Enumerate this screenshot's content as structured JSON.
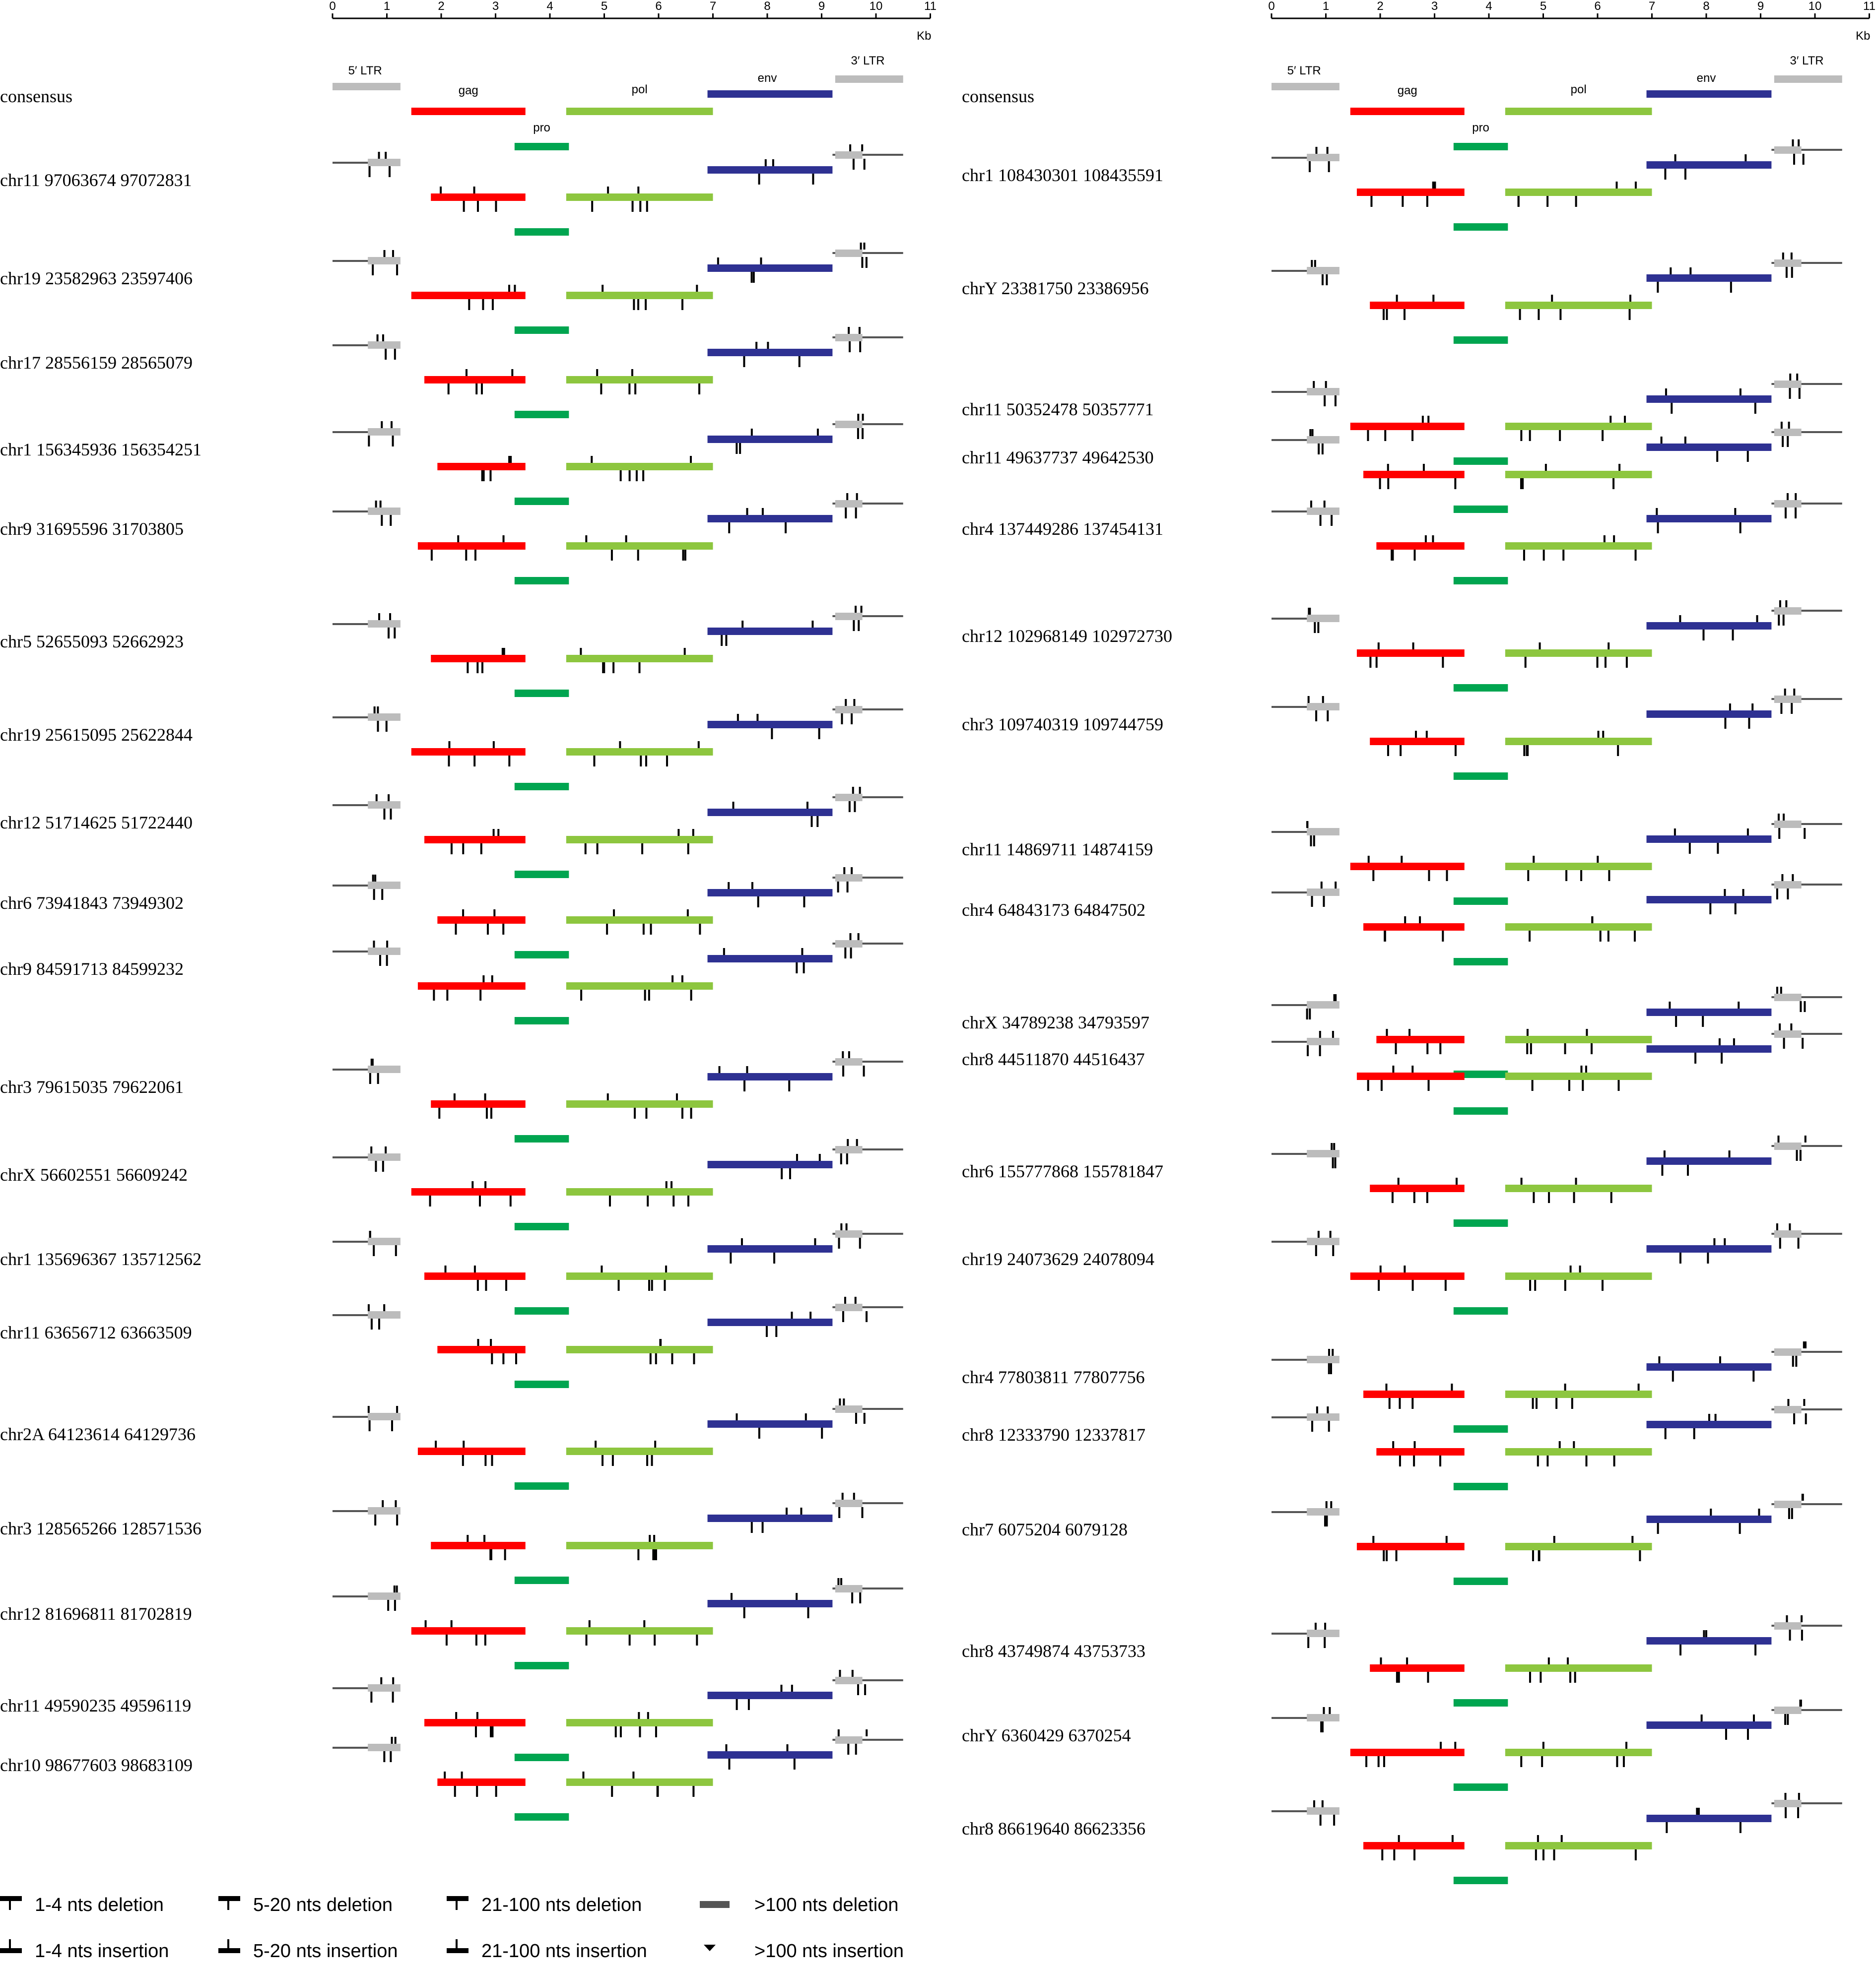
{
  "axis": {
    "ticks": [
      "0",
      "1",
      "2",
      "3",
      "4",
      "5",
      "6",
      "7",
      "8",
      "9",
      "10",
      "11"
    ],
    "unit": "Kb",
    "max_kb": 11
  },
  "consensus": {
    "label": "consensus",
    "five_ltr": "5′ LTR",
    "three_ltr": "3′ LTR",
    "gag": "gag",
    "pro": "pro",
    "pol": "pol",
    "env": "env"
  },
  "colors": {
    "gag": "#ff0000",
    "pro": "#00a550",
    "pol": "#8dc63f",
    "env": "#2e3192",
    "ltr": "#bcbcbc",
    "backbone": "#555555"
  },
  "left_labels": [
    "chr11 97063674 97072831",
    "chr19 23582963 23597406",
    "chr17 28556159 28565079",
    "chr1 156345936 156354251",
    "chr9 31695596 31703805",
    "chr5 52655093 52662923",
    "chr19 25615095 25622844",
    "chr12 51714625 51722440",
    "chr6 73941843 73949302",
    "chr9 84591713 84599232",
    "chr3 79615035 79622061",
    "chrX 56602551 56609242",
    "chr1 135696367 135712562",
    "chr11 63656712 63663509",
    "chr2A 64123614 64129736",
    "chr3 128565266 128571536",
    "chr12 81696811 81702819",
    "chr11 49590235 49596119",
    "chr10 98677603 98683109"
  ],
  "right_labels": [
    "chr1 108430301 108435591",
    "chrY 23381750 23386956",
    "chr11 50352478 50357771",
    "chr11 49637737 49642530",
    "chr4 137449286 137454131",
    "chr12 102968149 102972730",
    "chr3 109740319 109744759",
    "chr11 14869711 14874159",
    "chr4 64843173 64847502",
    "chrX 34789238 34793597",
    "chr8 44511870 44516437",
    "chr6 155777868 155781847",
    "chr19 24073629 24078094",
    "chr4 77803811 77807756",
    "chr8 12333790 12337817",
    "chr7 6075204 6079128",
    "chr8 43749874 43753733",
    "chrY 6360429 6370254",
    "chr8 86619640 86623356"
  ],
  "legend": [
    {
      "key": "del_1_4",
      "label": "1-4 nts deletion"
    },
    {
      "key": "del_5_20",
      "label": "5-20 nts deletion"
    },
    {
      "key": "del_21_100",
      "label": "21-100 nts deletion"
    },
    {
      "key": "del_100",
      "label": ">100 nts deletion"
    },
    {
      "key": "ins_1_4",
      "label": "1-4 nts insertion"
    },
    {
      "key": "ins_5_20",
      "label": "5-20 nts insertion"
    },
    {
      "key": "ins_21_100",
      "label": "21-100 nts insertion"
    },
    {
      "key": "ins_100",
      "label": ">100 nts insertion"
    }
  ]
}
